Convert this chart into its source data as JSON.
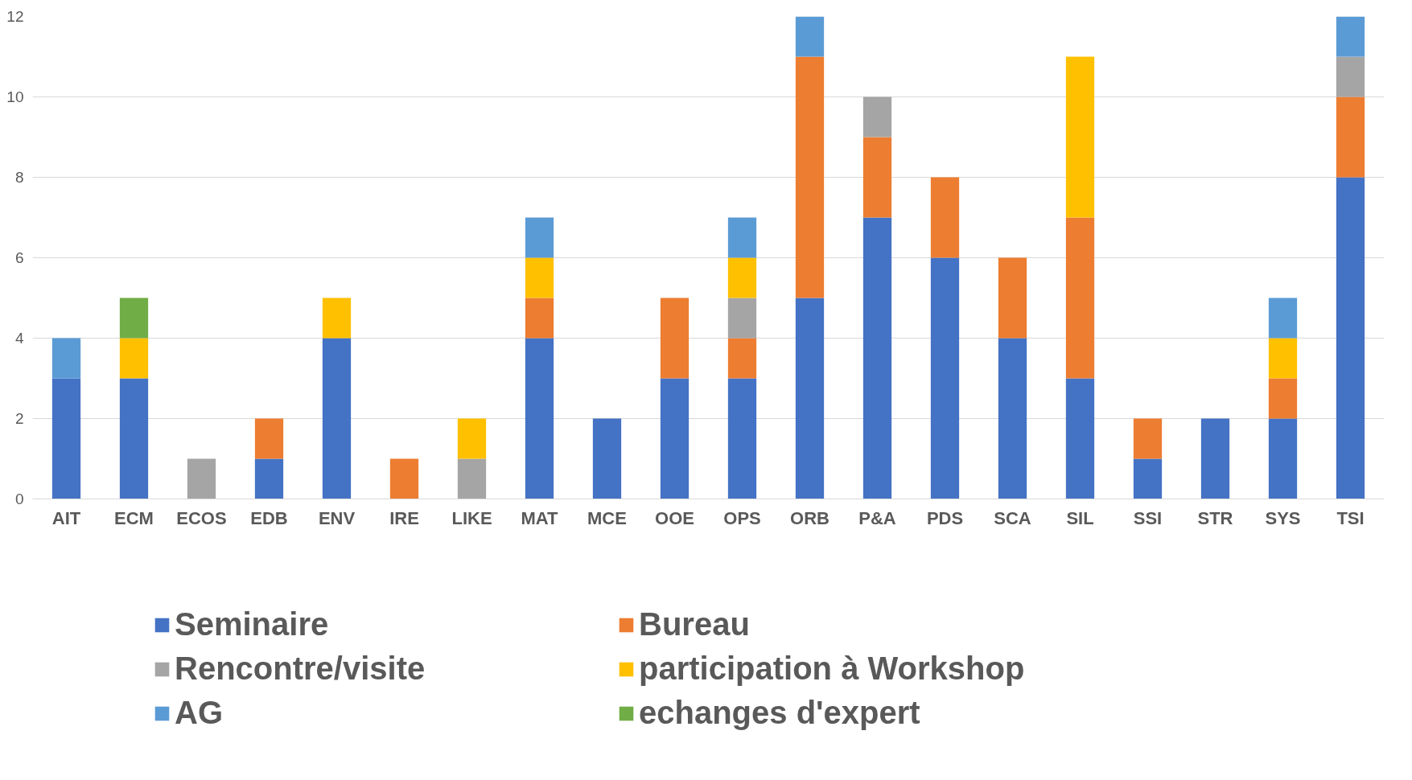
{
  "chart_data": {
    "type": "bar",
    "stacked": true,
    "categories": [
      "AIT",
      "ECM",
      "ECOS",
      "EDB",
      "ENV",
      "IRE",
      "LIKE",
      "MAT",
      "MCE",
      "OOE",
      "OPS",
      "ORB",
      "P&A",
      "PDS",
      "SCA",
      "SIL",
      "SSI",
      "STR",
      "SYS",
      "TSI"
    ],
    "series": [
      {
        "name": "Seminaire",
        "color": "#4472c4",
        "values": [
          3,
          3,
          0,
          1,
          4,
          0,
          0,
          4,
          2,
          3,
          3,
          5,
          7,
          6,
          4,
          3,
          1,
          2,
          2,
          8
        ]
      },
      {
        "name": "Bureau",
        "color": "#ed7d31",
        "values": [
          0,
          0,
          0,
          1,
          0,
          1,
          0,
          1,
          0,
          2,
          1,
          6,
          2,
          2,
          2,
          4,
          1,
          0,
          1,
          2
        ]
      },
      {
        "name": "Rencontre/visite",
        "color": "#a5a5a5",
        "values": [
          0,
          0,
          1,
          0,
          0,
          0,
          1,
          0,
          0,
          0,
          1,
          0,
          1,
          0,
          0,
          0,
          0,
          0,
          0,
          1
        ]
      },
      {
        "name": "participation à Workshop",
        "color": "#ffc000",
        "values": [
          0,
          1,
          0,
          0,
          1,
          0,
          1,
          1,
          0,
          0,
          1,
          0,
          0,
          0,
          0,
          4,
          0,
          0,
          1,
          0
        ]
      },
      {
        "name": "AG",
        "color": "#5b9bd5",
        "values": [
          1,
          0,
          0,
          0,
          0,
          0,
          0,
          1,
          0,
          0,
          1,
          1,
          0,
          0,
          0,
          0,
          0,
          0,
          1,
          1
        ]
      },
      {
        "name": "echanges d'expert",
        "color": "#70ad47",
        "values": [
          0,
          1,
          0,
          0,
          0,
          0,
          0,
          0,
          0,
          0,
          0,
          0,
          0,
          0,
          0,
          0,
          0,
          0,
          0,
          0
        ]
      }
    ],
    "ylim": [
      0,
      12
    ],
    "yticks": [
      0,
      2,
      4,
      6,
      8,
      10,
      12
    ],
    "grid": "y",
    "legend": "bottom"
  }
}
